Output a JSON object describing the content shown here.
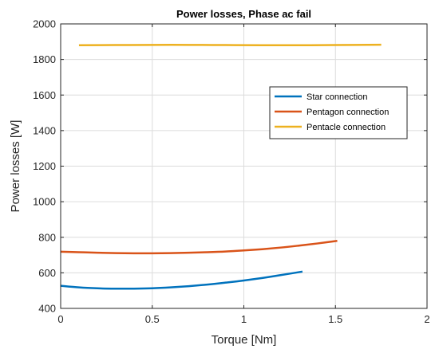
{
  "chart_data": {
    "type": "line",
    "title": "Power losses, Phase ac fail",
    "xlabel": "Torque [Nm]",
    "ylabel": "Power losses [W]",
    "xlim": [
      0,
      2
    ],
    "ylim": [
      400,
      2000
    ],
    "xticks": [
      0,
      0.5,
      1,
      1.5,
      2
    ],
    "yticks": [
      400,
      600,
      800,
      1000,
      1200,
      1400,
      1600,
      1800,
      2000
    ],
    "xtick_labels": [
      "0",
      "0.5",
      "1",
      "1.5",
      "2"
    ],
    "ytick_labels": [
      "400",
      "600",
      "800",
      "1000",
      "1200",
      "1400",
      "1600",
      "1800",
      "2000"
    ],
    "grid": true,
    "legend_position": "top-right",
    "series": [
      {
        "name": "Star connection",
        "color": "#0072BD",
        "x": [
          0,
          0.1,
          0.2,
          0.3,
          0.4,
          0.5,
          0.6,
          0.7,
          0.8,
          0.9,
          1.0,
          1.1,
          1.2,
          1.32
        ],
        "y": [
          527,
          518,
          513,
          511,
          511,
          513,
          518,
          525,
          534,
          545,
          557,
          571,
          587,
          607
        ]
      },
      {
        "name": "Pentagon connection",
        "color": "#D95319",
        "x": [
          0,
          0.1,
          0.2,
          0.3,
          0.4,
          0.5,
          0.6,
          0.7,
          0.8,
          0.9,
          1.0,
          1.1,
          1.2,
          1.3,
          1.4,
          1.51
        ],
        "y": [
          719,
          716,
          713,
          711,
          710,
          710,
          711,
          713,
          716,
          720,
          726,
          733,
          742,
          753,
          765,
          780
        ]
      },
      {
        "name": "Pentacle connection",
        "color": "#EDB120",
        "x": [
          0.1,
          0.3,
          0.5,
          0.7,
          0.9,
          1.1,
          1.3,
          1.5,
          1.75
        ],
        "y": [
          1880,
          1881,
          1882,
          1882,
          1881,
          1880,
          1880,
          1881,
          1883
        ]
      }
    ]
  }
}
